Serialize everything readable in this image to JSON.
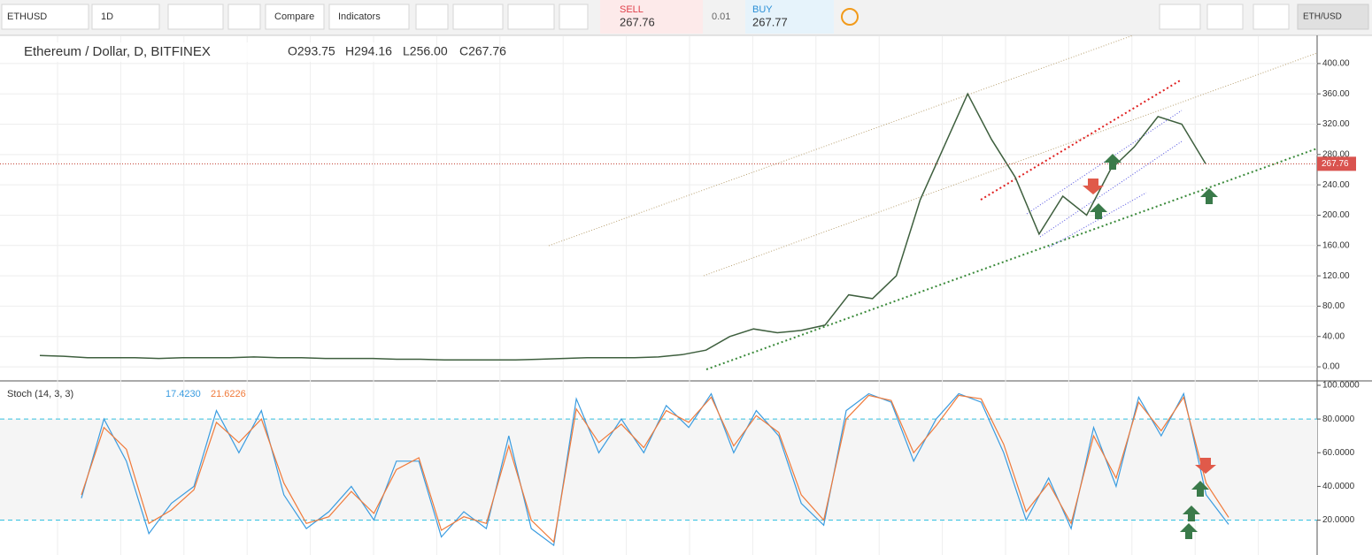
{
  "toolbar": {
    "symbol": "ETHUSD",
    "interval": "1D",
    "compare": "Compare",
    "indicators": "Indicators",
    "sell_label": "SELL",
    "sell_price": "267.76",
    "spread": "0.01",
    "buy_label": "BUY",
    "buy_price": "267.77",
    "pair_button": "ETH/USD"
  },
  "header": {
    "title": "Ethereum / Dollar, D, BITFINEX",
    "open": "O293.75",
    "high": "H294.16",
    "low": "L256.00",
    "close": "C267.76"
  },
  "chart_data": [
    {
      "type": "line",
      "name": "price",
      "color": "#3e5f3e",
      "last_price": 267.76,
      "values": [
        15,
        14,
        12,
        12,
        12,
        11,
        12,
        12,
        12,
        13,
        12,
        12,
        11,
        11,
        11,
        10,
        10,
        9,
        9,
        9,
        9,
        10,
        11,
        12,
        12,
        12,
        13,
        16,
        22,
        40,
        50,
        45,
        48,
        55,
        95,
        90,
        120,
        220,
        290,
        360,
        300,
        250,
        175,
        225,
        200,
        260,
        290,
        330,
        320,
        267.76
      ],
      "ylim": [
        -17.4,
        436
      ],
      "yticks": [
        {
          "value": 0,
          "label": "0.00"
        },
        {
          "value": 40,
          "label": "40.00"
        },
        {
          "value": 80,
          "label": "80.00"
        },
        {
          "value": 120,
          "label": "120.00"
        },
        {
          "value": 160,
          "label": "160.00"
        },
        {
          "value": 200,
          "label": "200.00"
        },
        {
          "value": 240,
          "label": "240.00"
        },
        {
          "value": 280,
          "label": "280.00"
        },
        {
          "value": 320,
          "label": "320.00"
        },
        {
          "value": 360,
          "label": "360.00"
        },
        {
          "value": 400,
          "label": "400.00"
        }
      ],
      "grid": true
    },
    {
      "type": "line",
      "name": "stoch",
      "title": "Stoch (14, 3, 3)",
      "bands": [
        20,
        80
      ],
      "series": [
        {
          "name": "17.4230",
          "color": "#3a9ce0",
          "values": [
            33,
            80,
            55,
            12,
            30,
            40,
            85,
            60,
            85,
            35,
            15,
            25,
            40,
            20,
            55,
            55,
            10,
            25,
            15,
            70,
            15,
            5,
            92,
            60,
            80,
            60,
            88,
            75,
            95,
            60,
            85,
            70,
            30,
            17,
            85,
            95,
            90,
            55,
            80,
            95,
            90,
            60,
            20,
            45,
            15,
            75,
            40,
            93,
            70,
            95,
            35,
            17.423
          ]
        },
        {
          "name": "21.6226",
          "color": "#f07a3a",
          "values": [
            35,
            75,
            62,
            18,
            26,
            38,
            78,
            66,
            80,
            42,
            18,
            22,
            37,
            24,
            50,
            57,
            14,
            22,
            18,
            64,
            20,
            7,
            86,
            66,
            77,
            63,
            85,
            78,
            93,
            64,
            82,
            72,
            35,
            20,
            80,
            94,
            91,
            60,
            76,
            94,
            92,
            65,
            25,
            42,
            18,
            70,
            45,
            90,
            73,
            93,
            42,
            21.6226
          ]
        }
      ],
      "ylim": [
        -0.7,
        102.1
      ],
      "yticks": [
        {
          "value": 20,
          "label": "20.0000"
        },
        {
          "value": 40,
          "label": "40.0000"
        },
        {
          "value": 60,
          "label": "60.0000"
        },
        {
          "value": 80,
          "label": "80.0000"
        },
        {
          "value": 100,
          "label": "100.0000"
        }
      ]
    }
  ]
}
